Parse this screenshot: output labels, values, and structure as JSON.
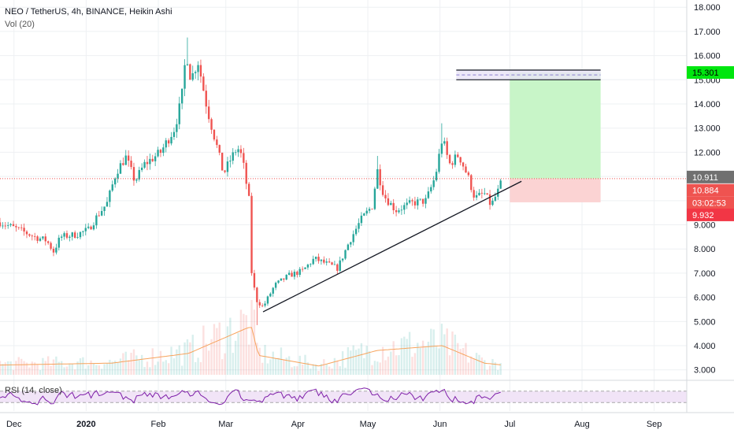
{
  "legend": {
    "symbol_line": "NEO / TetherUS, 4h, BINANCE, Heikin Ashi",
    "volume_line": "Vol (20)",
    "rsi_line": "RSI (14, close)"
  },
  "colors": {
    "up": "#26a69a",
    "down": "#ef5350",
    "rsi": "#7e1fa8",
    "trendline": "#131722",
    "profit_zone": "#c8f5c8",
    "loss_zone": "#fbd3d3",
    "target_label": "#00e60f",
    "last_price_label": "#707070",
    "countdown_label": "#ef5350",
    "stop_label": "#f23645",
    "volume_ma": "#f7a35c"
  },
  "badges": {
    "target": "15.301",
    "last": "10.911",
    "current": "10.884",
    "countdown": "03:02:53",
    "stop": "9.932"
  },
  "chart_data": {
    "type": "candlestick",
    "chart_style": "Heikin Ashi",
    "symbol": "NEO / TetherUS",
    "interval": "4h",
    "exchange": "BINANCE",
    "y_axis": {
      "min": 2.6,
      "max": 18.3,
      "ticks": [
        "18.000",
        "17.000",
        "16.000",
        "15.000",
        "14.000",
        "13.000",
        "12.000",
        "11.000",
        "10.000",
        "9.000",
        "8.000",
        "7.000",
        "6.000",
        "5.000",
        "4.000",
        "3.000"
      ]
    },
    "x_axis": {
      "start": "2019-11-25",
      "end": "2020-09-15",
      "labels": [
        {
          "text": "Dec",
          "date": "2019-12-01"
        },
        {
          "text": "2020",
          "date": "2020-01-01"
        },
        {
          "text": "Feb",
          "date": "2020-02-01"
        },
        {
          "text": "Mar",
          "date": "2020-03-01"
        },
        {
          "text": "Apr",
          "date": "2020-04-01"
        },
        {
          "text": "May",
          "date": "2020-05-01"
        },
        {
          "text": "Jun",
          "date": "2020-06-01"
        },
        {
          "text": "Jul",
          "date": "2020-07-01"
        },
        {
          "text": "Aug",
          "date": "2020-08-01"
        },
        {
          "text": "Sep",
          "date": "2020-09-01"
        }
      ]
    },
    "price_path": [
      [
        "2019-11-25",
        9.1
      ],
      [
        "2019-12-03",
        8.8
      ],
      [
        "2019-12-10",
        8.5
      ],
      [
        "2019-12-15",
        8.35
      ],
      [
        "2019-12-18",
        7.9
      ],
      [
        "2019-12-21",
        8.5
      ],
      [
        "2019-12-28",
        8.6
      ],
      [
        "2020-01-02",
        8.8
      ],
      [
        "2020-01-06",
        9.4
      ],
      [
        "2020-01-10",
        9.9
      ],
      [
        "2020-01-14",
        11.2
      ],
      [
        "2020-01-18",
        11.8
      ],
      [
        "2020-01-22",
        10.8
      ],
      [
        "2020-01-26",
        11.5
      ],
      [
        "2020-02-02",
        12.0
      ],
      [
        "2020-02-08",
        13.0
      ],
      [
        "2020-02-11",
        14.2
      ],
      [
        "2020-02-13",
        16.2
      ],
      [
        "2020-02-15",
        15.0
      ],
      [
        "2020-02-18",
        15.8
      ],
      [
        "2020-02-22",
        13.8
      ],
      [
        "2020-02-26",
        12.3
      ],
      [
        "2020-02-29",
        11.1
      ],
      [
        "2020-03-03",
        11.7
      ],
      [
        "2020-03-06",
        12.2
      ],
      [
        "2020-03-08",
        11.8
      ],
      [
        "2020-03-11",
        10.0
      ],
      [
        "2020-03-12",
        7.1
      ],
      [
        "2020-03-14",
        5.9
      ],
      [
        "2020-03-17",
        5.6
      ],
      [
        "2020-03-22",
        6.5
      ],
      [
        "2020-03-28",
        6.9
      ],
      [
        "2020-04-03",
        7.1
      ],
      [
        "2020-04-08",
        7.6
      ],
      [
        "2020-04-13",
        7.4
      ],
      [
        "2020-04-18",
        7.2
      ],
      [
        "2020-04-23",
        8.3
      ],
      [
        "2020-04-28",
        9.2
      ],
      [
        "2020-05-03",
        9.8
      ],
      [
        "2020-05-05",
        11.3
      ],
      [
        "2020-05-08",
        10.2
      ],
      [
        "2020-05-13",
        9.6
      ],
      [
        "2020-05-20",
        9.9
      ],
      [
        "2020-05-26",
        10.0
      ],
      [
        "2020-05-30",
        11.0
      ],
      [
        "2020-06-02",
        12.6
      ],
      [
        "2020-06-05",
        11.5
      ],
      [
        "2020-06-09",
        11.9
      ],
      [
        "2020-06-13",
        11.0
      ],
      [
        "2020-06-16",
        10.1
      ],
      [
        "2020-06-20",
        10.3
      ],
      [
        "2020-06-23",
        9.8
      ],
      [
        "2020-06-26",
        10.4
      ],
      [
        "2020-06-28",
        10.9
      ]
    ],
    "volume_path": [
      [
        "2019-11-25",
        1.0
      ],
      [
        "2020-01-12",
        1.2
      ],
      [
        "2020-02-14",
        2.2
      ],
      [
        "2020-03-12",
        5.0
      ],
      [
        "2020-03-15",
        2.0
      ],
      [
        "2020-04-10",
        0.9
      ],
      [
        "2020-05-05",
        2.5
      ],
      [
        "2020-06-02",
        3.0
      ],
      [
        "2020-06-20",
        1.2
      ],
      [
        "2020-06-28",
        1.0
      ]
    ],
    "rsi": {
      "upper_band": 70,
      "lower_band": 30
    },
    "drawings": {
      "trendline": {
        "from": [
          "2020-03-17",
          5.4
        ],
        "to": [
          "2020-07-06",
          10.8
        ]
      },
      "position": {
        "start": "2020-07-01",
        "end": "2020-08-09",
        "entry": 10.911,
        "target": 15.301,
        "stop": 9.932
      },
      "target_channel": {
        "start": "2020-06-08",
        "end": "2020-08-09",
        "top": 15.4,
        "mid": 15.2,
        "bottom": 15.0
      }
    },
    "last_price": 10.911,
    "current_price": 10.884,
    "countdown": "03:02:53"
  }
}
